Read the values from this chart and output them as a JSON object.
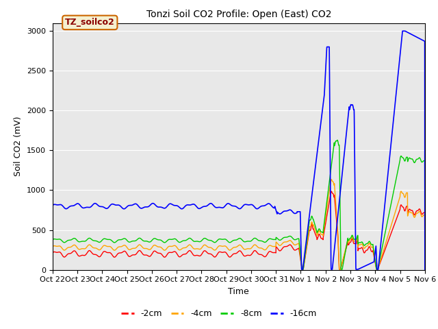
{
  "title": "Tonzi Soil CO2 Profile: Open (East) CO2",
  "ylabel": "Soil CO2 (mV)",
  "xlabel": "Time",
  "ylim": [
    0,
    3100
  ],
  "background_color": "#e8e8e8",
  "legend_label": "TZ_soilco2",
  "series_labels": [
    "-2cm",
    "-4cm",
    "-8cm",
    "-16cm"
  ],
  "series_colors": [
    "#ff0000",
    "#ffa500",
    "#00cc00",
    "#0000ff"
  ],
  "xtick_labels": [
    "Oct 22",
    "Oct 23",
    "Oct 24",
    "Oct 25",
    "Oct 26",
    "Oct 27",
    "Oct 28",
    "Oct 29",
    "Oct 30",
    "Oct 31",
    "Nov 1",
    "Nov 2",
    "Nov 3",
    "Nov 4",
    "Nov 5",
    "Nov 6"
  ]
}
